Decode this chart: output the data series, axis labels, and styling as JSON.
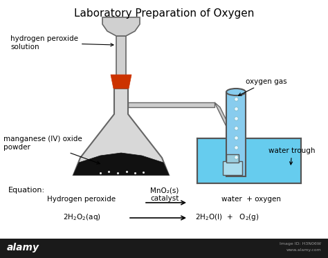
{
  "title": "Laboratory Preparation of Oxygen",
  "bg_color": "#ffffff",
  "title_fontsize": 11,
  "label_fontsize": 7.5,
  "colors": {
    "flask_body": "#d8d8d8",
    "flask_outline": "#666666",
    "funnel_body": "#d0d0d0",
    "funnel_outline": "#666666",
    "stopper": "#cc3300",
    "powder": "#111111",
    "tube": "#888888",
    "water_trough_water": "#66ccee",
    "water_trough_border": "#555555",
    "cylinder_fill": "#88ccee",
    "cylinder_border": "#555555",
    "dot_color": "#aaddff",
    "arrow_color": "#222222",
    "alamy_bar": "#1a1a1a",
    "alamy_text": "#ffffff",
    "alamy_small": "#999999"
  },
  "labels": {
    "h2o2": "hydrogen peroxide\nsolution",
    "mno2": "manganese (lV) oxide\npowder",
    "o2_gas": "oxygen gas",
    "water_trough": "water trough",
    "equation": "Equation:",
    "h_peroxide": "Hydrogen peroxide",
    "catalyst_label": "MnO₂(s)\ncatalyst",
    "products_word": "water  + oxygen",
    "products_formula_left": "2H₂O(l) +",
    "products_formula_right": "O₂(g)"
  }
}
